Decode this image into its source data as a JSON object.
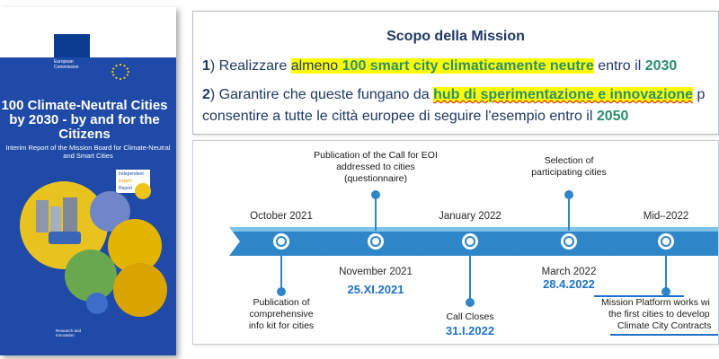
{
  "cover": {
    "publisher_lines": "European\nCommission",
    "title": "100 Climate-Neutral Cities by 2030 - by and for the Citizens",
    "subtitle": "Interim Report of the Mission Board for Climate-Neutral and Smart Cities",
    "badge": [
      "Independent",
      "Expert",
      "Report"
    ],
    "footer": "Research and\nInnovation"
  },
  "scope": {
    "title": "Scopo della Mission",
    "line1": {
      "num": "1",
      "paren": ")",
      "a": " Realizzare ",
      "b": "almeno ",
      "c": "100 smart city climaticamente neutre",
      "d": " entro il ",
      "e": "2030"
    },
    "line2": {
      "num": "2",
      "paren": ")",
      "a": " Garantire che queste fungano da ",
      "b": "hub di sperimentazione e innovazione",
      "c": " p"
    },
    "line3": {
      "a": "consentire a tutte le città europee di seguire l'esempio entro il ",
      "b": "2050"
    }
  },
  "timeline": {
    "top_labels": [
      "Publication of the Call for EOI\naddressed to cities\n(questionnaire)",
      "Selection of\nparticipating cities"
    ],
    "upper_dates": [
      "October 2021",
      "January 2022",
      "Mid–2022"
    ],
    "lower_dates": [
      "November 2021",
      "March 2022"
    ],
    "blue_dates": [
      "25.XI.2021",
      "28.4.2022",
      "31.I.2022"
    ],
    "bottom_labels": [
      "Publication of\ncomprehensive\ninfo kit for cities",
      "Call Closes"
    ],
    "mission_platform": {
      "a": "Mission Platform",
      "b": " works wi"
    },
    "mission_line2": "the first cities to develop",
    "mission_line3": "Climate City Contracts"
  }
}
